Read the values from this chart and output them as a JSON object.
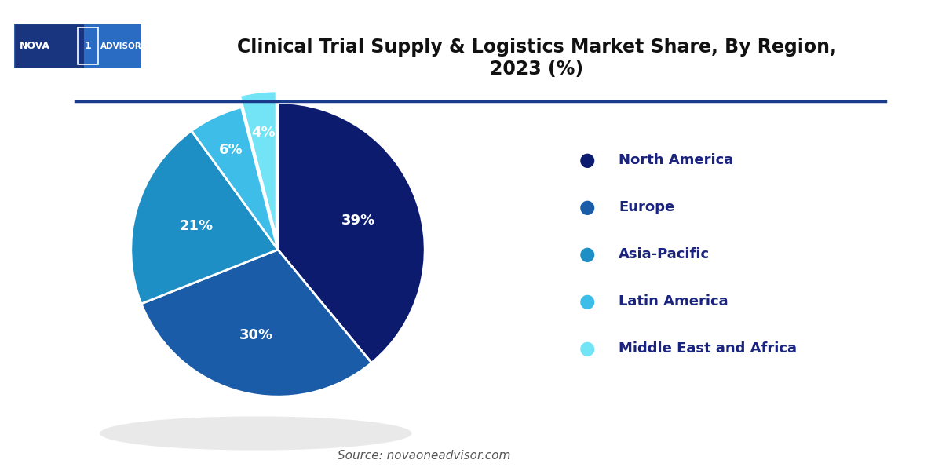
{
  "title": "Clinical Trial Supply & Logistics Market Share, By Region,\n2023 (%)",
  "slices": [
    39,
    30,
    21,
    6,
    4
  ],
  "labels": [
    "North America",
    "Europe",
    "Asia-Pacific",
    "Latin America",
    "Middle East and Africa"
  ],
  "pct_labels": [
    "39%",
    "30%",
    "21%",
    "6%",
    "4%"
  ],
  "colors": [
    "#0d1b6e",
    "#1a5ca8",
    "#1e8fc4",
    "#3dbde8",
    "#72e4f5"
  ],
  "source": "Source: novaoneadvisor.com",
  "background_color": "#ffffff",
  "separator_color": "#1a3a8c",
  "legend_dot_colors": [
    "#0d1b6e",
    "#1a5ca8",
    "#1e8fc4",
    "#3dbde8",
    "#72e4f5"
  ],
  "startangle": 90,
  "explode": [
    0,
    0,
    0,
    0,
    0.08
  ],
  "pct_radii": [
    0.58,
    0.6,
    0.58,
    0.75,
    0.8
  ],
  "legend_label_color": "#1a237e",
  "legend_fontsize": 13,
  "title_fontsize": 17,
  "title_color": "#111111"
}
